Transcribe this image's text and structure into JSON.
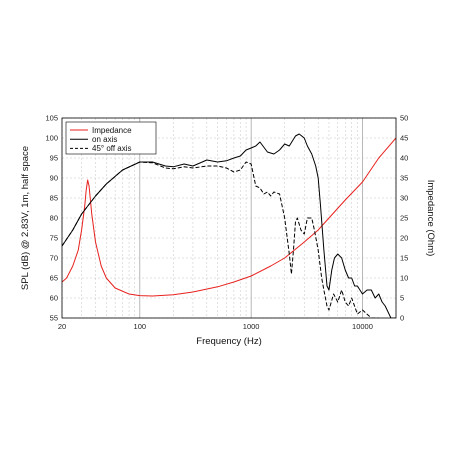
{
  "chart_data": {
    "type": "line",
    "xlabel": "Frequency (Hz)",
    "ylabel_left": "SPL (dB) @ 2.83V, 1m, half space",
    "ylabel_right": "Impedance (Ohm)",
    "x_scale": "log",
    "xlim": [
      20,
      20000
    ],
    "ylim_left": [
      55,
      105
    ],
    "ylim_right": [
      0,
      50
    ],
    "x_ticks": [
      20,
      100,
      1000,
      10000
    ],
    "x_tick_labels": [
      "20",
      "100",
      "1000",
      "10000"
    ],
    "y_left_ticks": [
      55,
      60,
      65,
      70,
      75,
      80,
      85,
      90,
      95,
      100,
      105
    ],
    "y_right_ticks": [
      0,
      5,
      10,
      15,
      20,
      25,
      30,
      35,
      40,
      45,
      50
    ],
    "grid": true,
    "legend_position": "top-left",
    "colors": {
      "impedance": "#e8211d",
      "on_axis": "#000000",
      "off_axis": "#000000"
    },
    "series": [
      {
        "name": "Impedance",
        "axis": "right",
        "style": "solid",
        "color": "#e8211d",
        "x": [
          20,
          22,
          25,
          28,
          30,
          32,
          33,
          34,
          35,
          37,
          40,
          45,
          50,
          60,
          80,
          100,
          130,
          200,
          300,
          500,
          700,
          1000,
          1500,
          2000,
          3000,
          4000,
          5000,
          7000,
          10000,
          14000,
          20000
        ],
        "y": [
          9,
          10,
          13,
          17,
          22,
          28,
          32,
          34.5,
          33,
          26,
          19,
          13,
          10,
          7.5,
          6,
          5.6,
          5.5,
          5.8,
          6.5,
          7.8,
          9,
          10.5,
          13,
          15,
          19,
          22,
          25,
          29.5,
          34,
          40,
          45
        ]
      },
      {
        "name": "on axis",
        "axis": "left",
        "style": "solid",
        "color": "#000000",
        "x": [
          20,
          25,
          30,
          40,
          50,
          70,
          100,
          130,
          170,
          200,
          250,
          300,
          400,
          500,
          600,
          700,
          800,
          900,
          1000,
          1100,
          1200,
          1400,
          1600,
          1800,
          2000,
          2200,
          2500,
          2700,
          3000,
          3200,
          3500,
          3800,
          4000,
          4200,
          4500,
          4800,
          5000,
          5300,
          5600,
          6000,
          6500,
          7000,
          7500,
          8000,
          8500,
          9000,
          10000,
          11000,
          12000,
          13000,
          14000,
          15000,
          16000,
          18000,
          20000
        ],
        "y": [
          73,
          77,
          81,
          85.5,
          88.5,
          92,
          94,
          94,
          93,
          92.8,
          93.5,
          93,
          94.5,
          94,
          94.3,
          95,
          95.5,
          97,
          97.5,
          98,
          99,
          96.5,
          96,
          97,
          98.5,
          98,
          100.5,
          101,
          100,
          98,
          96,
          93,
          90,
          83,
          72,
          63,
          62,
          67,
          70,
          71,
          70,
          67,
          65,
          65,
          63,
          63,
          61,
          62,
          62,
          60,
          61,
          59,
          58,
          55,
          55
        ]
      },
      {
        "name": "45° off axis",
        "axis": "left",
        "style": "dashed",
        "color": "#000000",
        "x": [
          20,
          25,
          30,
          40,
          50,
          70,
          100,
          130,
          170,
          200,
          250,
          300,
          400,
          500,
          600,
          700,
          800,
          900,
          1000,
          1100,
          1200,
          1300,
          1400,
          1500,
          1600,
          1800,
          2000,
          2200,
          2300,
          2400,
          2500,
          2600,
          2800,
          3000,
          3200,
          3500,
          3700,
          4000,
          4300,
          4500,
          4800,
          5000,
          5500,
          6000,
          6500,
          7000,
          7500,
          8000,
          9000,
          10000,
          12000,
          14000
        ],
        "y": [
          73,
          77,
          81,
          85.5,
          88.5,
          92,
          94,
          93.8,
          92.5,
          92.3,
          92.8,
          92.5,
          93,
          93,
          92.5,
          91.5,
          92,
          94,
          93.5,
          88,
          87.5,
          86,
          86.5,
          85.5,
          86.5,
          86,
          80,
          71,
          66,
          72,
          79,
          80,
          77,
          76,
          80,
          80,
          77,
          72,
          65,
          62,
          58,
          57,
          61,
          59,
          62,
          59,
          58,
          60,
          56,
          57,
          55,
          55
        ]
      }
    ]
  }
}
